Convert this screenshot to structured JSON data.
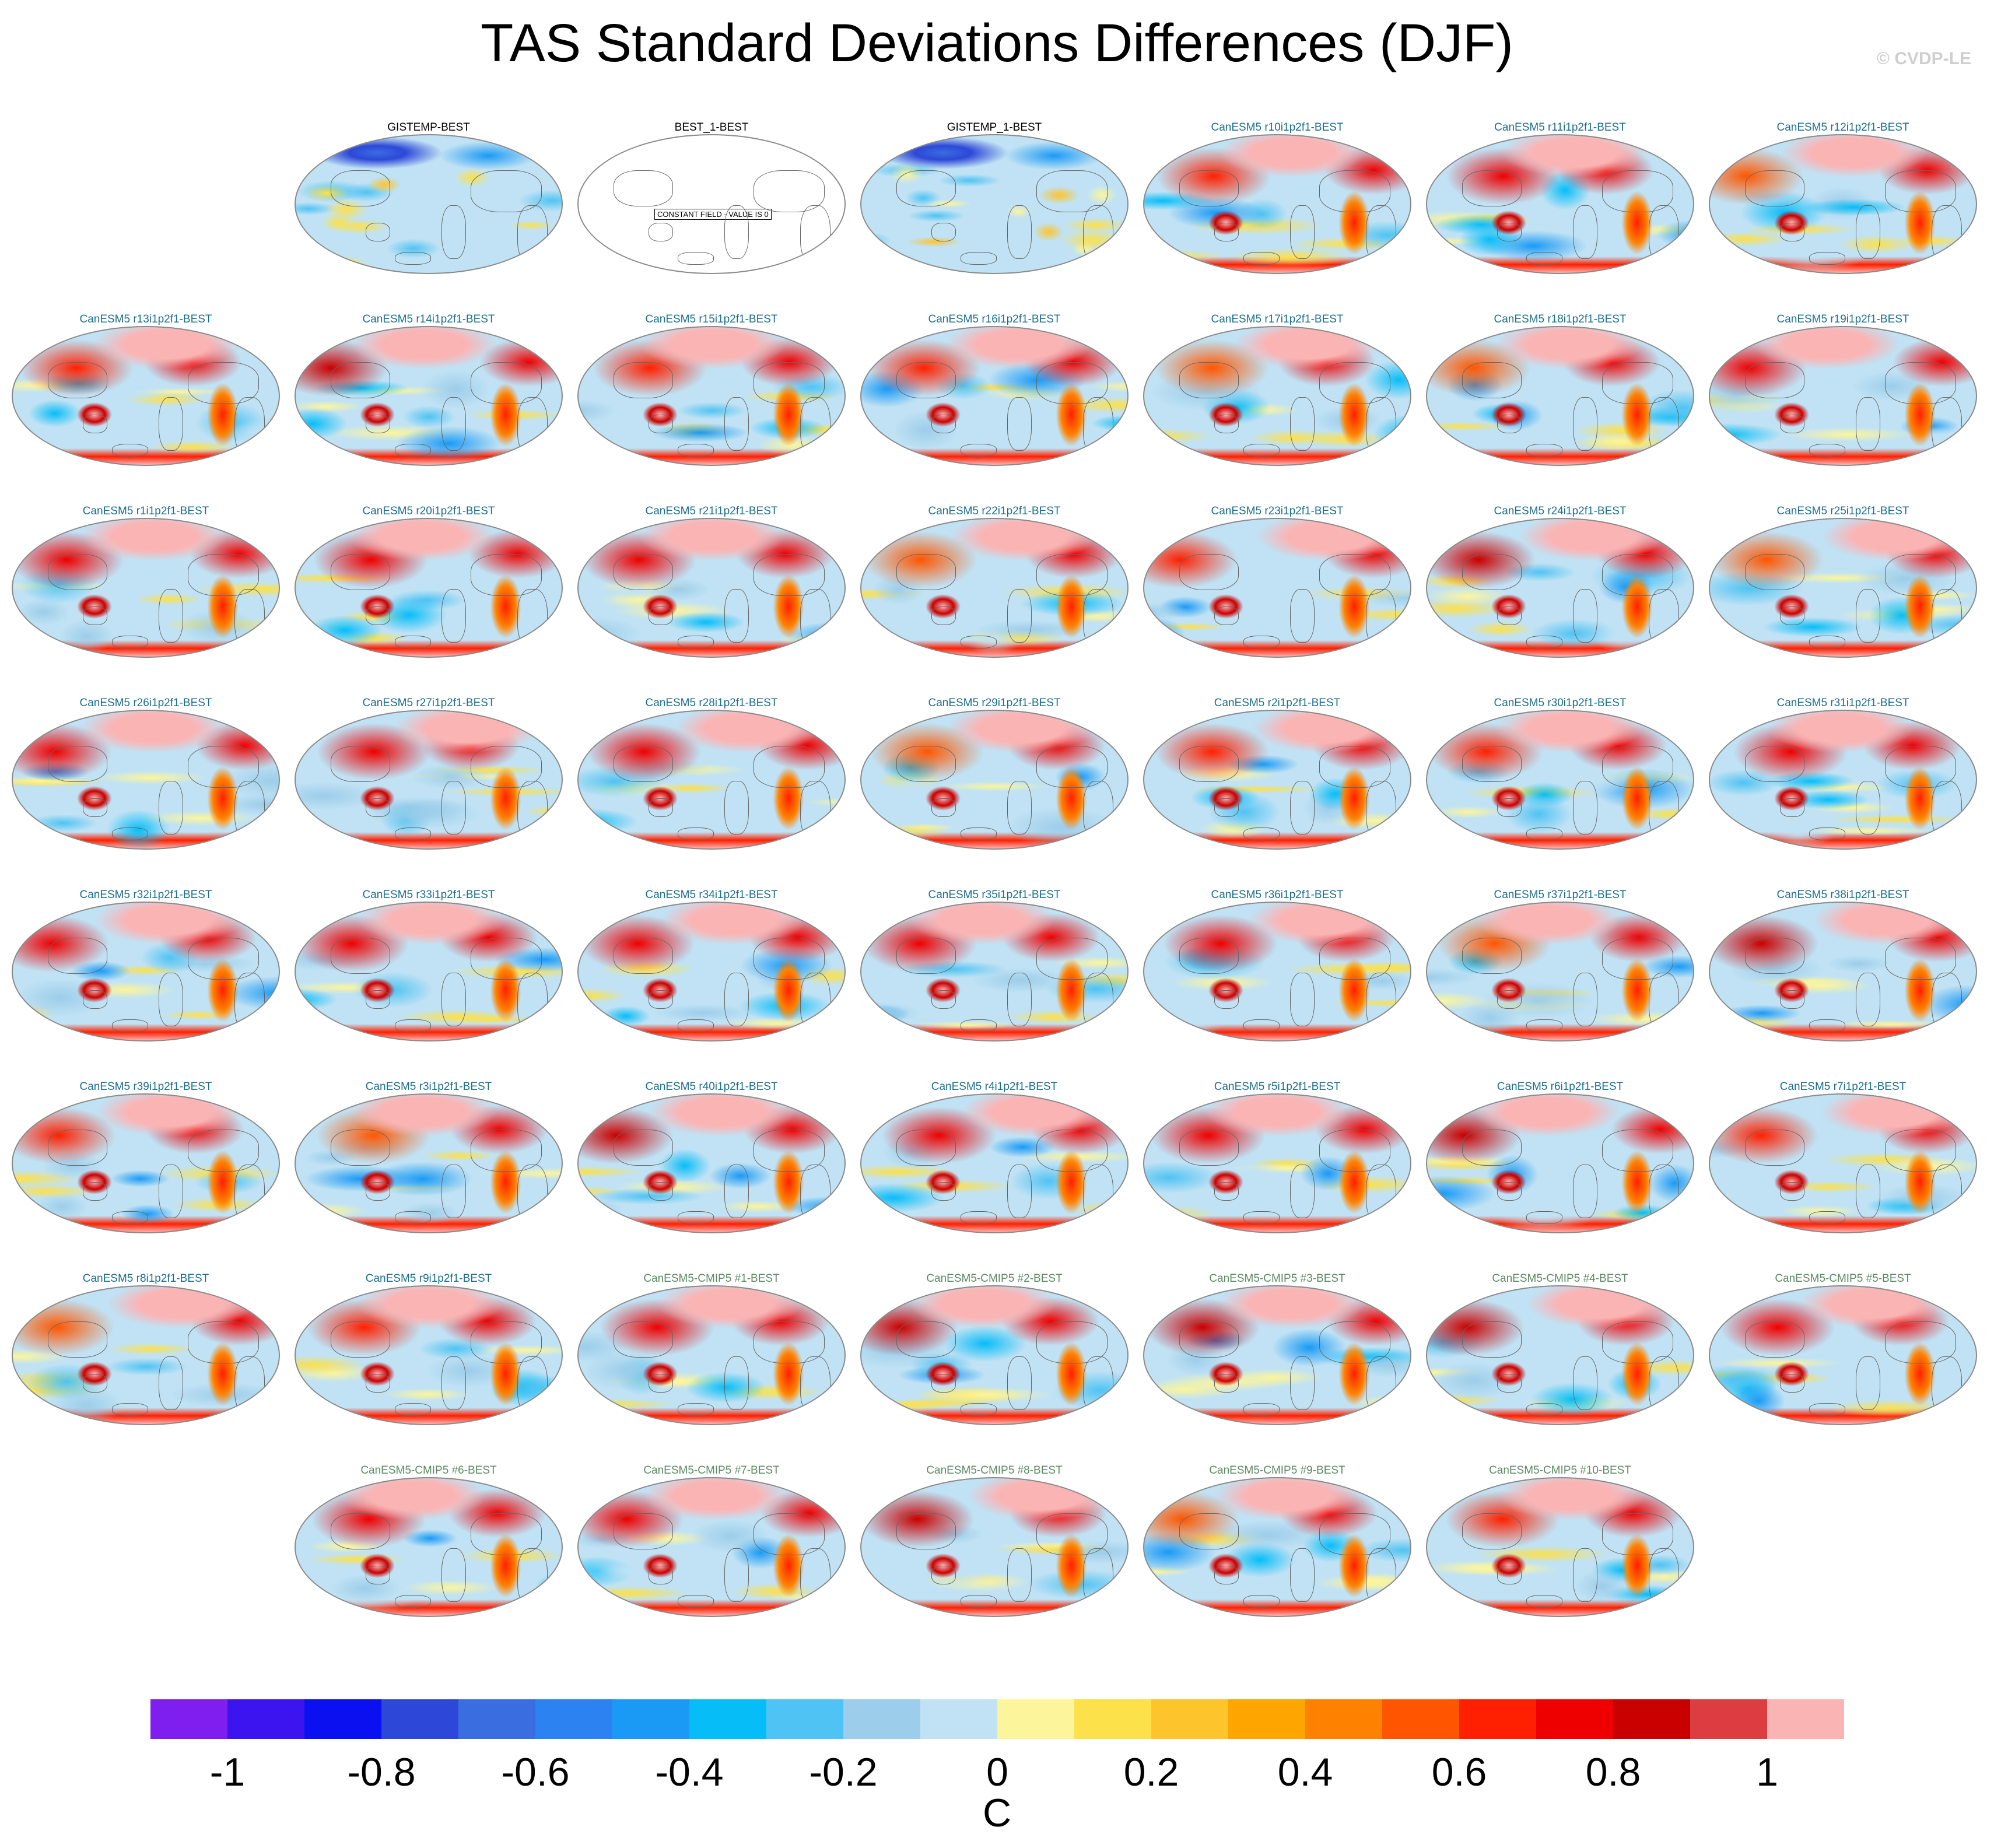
{
  "title": "TAS Standard Deviations Differences (DJF)",
  "credit": "© CVDP-LE",
  "panel_rows": [
    [
      "",
      "GISTEMP-BEST",
      "BEST_1-BEST",
      "GISTEMP_1-BEST",
      "CanESM5 r10i1p2f1-BEST",
      "CanESM5 r11i1p2f1-BEST",
      "CanESM5 r12i1p2f1-BEST"
    ],
    [
      "CanESM5 r13i1p2f1-BEST",
      "CanESM5 r14i1p2f1-BEST",
      "CanESM5 r15i1p2f1-BEST",
      "CanESM5 r16i1p2f1-BEST",
      "CanESM5 r17i1p2f1-BEST",
      "CanESM5 r18i1p2f1-BEST",
      "CanESM5 r19i1p2f1-BEST"
    ],
    [
      "CanESM5 r1i1p2f1-BEST",
      "CanESM5 r20i1p2f1-BEST",
      "CanESM5 r21i1p2f1-BEST",
      "CanESM5 r22i1p2f1-BEST",
      "CanESM5 r23i1p2f1-BEST",
      "CanESM5 r24i1p2f1-BEST",
      "CanESM5 r25i1p2f1-BEST"
    ],
    [
      "CanESM5 r26i1p2f1-BEST",
      "CanESM5 r27i1p2f1-BEST",
      "CanESM5 r28i1p2f1-BEST",
      "CanESM5 r29i1p2f1-BEST",
      "CanESM5 r2i1p2f1-BEST",
      "CanESM5 r30i1p2f1-BEST",
      "CanESM5 r31i1p2f1-BEST"
    ],
    [
      "CanESM5 r32i1p2f1-BEST",
      "CanESM5 r33i1p2f1-BEST",
      "CanESM5 r34i1p2f1-BEST",
      "CanESM5 r35i1p2f1-BEST",
      "CanESM5 r36i1p2f1-BEST",
      "CanESM5 r37i1p2f1-BEST",
      "CanESM5 r38i1p2f1-BEST"
    ],
    [
      "CanESM5 r39i1p2f1-BEST",
      "CanESM5 r3i1p2f1-BEST",
      "CanESM5 r40i1p2f1-BEST",
      "CanESM5 r4i1p2f1-BEST",
      "CanESM5 r5i1p2f1-BEST",
      "CanESM5 r6i1p2f1-BEST",
      "CanESM5 r7i1p2f1-BEST"
    ],
    [
      "CanESM5 r8i1p2f1-BEST",
      "CanESM5 r9i1p2f1-BEST",
      "CanESM5-CMIP5 #1-BEST",
      "CanESM5-CMIP5 #2-BEST",
      "CanESM5-CMIP5 #3-BEST",
      "CanESM5-CMIP5 #4-BEST",
      "CanESM5-CMIP5 #5-BEST"
    ],
    [
      "",
      "CanESM5-CMIP5 #6-BEST",
      "CanESM5-CMIP5 #7-BEST",
      "CanESM5-CMIP5 #8-BEST",
      "CanESM5-CMIP5 #9-BEST",
      "CanESM5-CMIP5 #10-BEST",
      ""
    ]
  ],
  "constant_field_panel": "BEST_1-BEST",
  "constant_field_message": "CONSTANT FIELD - VALUE IS 0",
  "label_colors": {
    "observed": "#000000",
    "canesm5": "#1b6e8c",
    "cmip5": "#5b8a63"
  },
  "colorbar": {
    "colors": [
      "#7f1fef",
      "#3c14f0",
      "#0a10f0",
      "#2d48d8",
      "#3a6de0",
      "#2b82f0",
      "#1a9af5",
      "#06bdf8",
      "#4fc3f3",
      "#9ccdea",
      "#c0e2f4",
      "#fdf59b",
      "#fde14a",
      "#fdc42c",
      "#fea500",
      "#fe8200",
      "#fe5600",
      "#fe2000",
      "#ee0000",
      "#c90000",
      "#dc3d40",
      "#fbb4b4"
    ],
    "tick_labels": [
      "-1",
      "-0.8",
      "-0.6",
      "-0.4",
      "-0.2",
      "0",
      "0.2",
      "0.4",
      "0.6",
      "0.8",
      "1"
    ],
    "unit": "C"
  }
}
